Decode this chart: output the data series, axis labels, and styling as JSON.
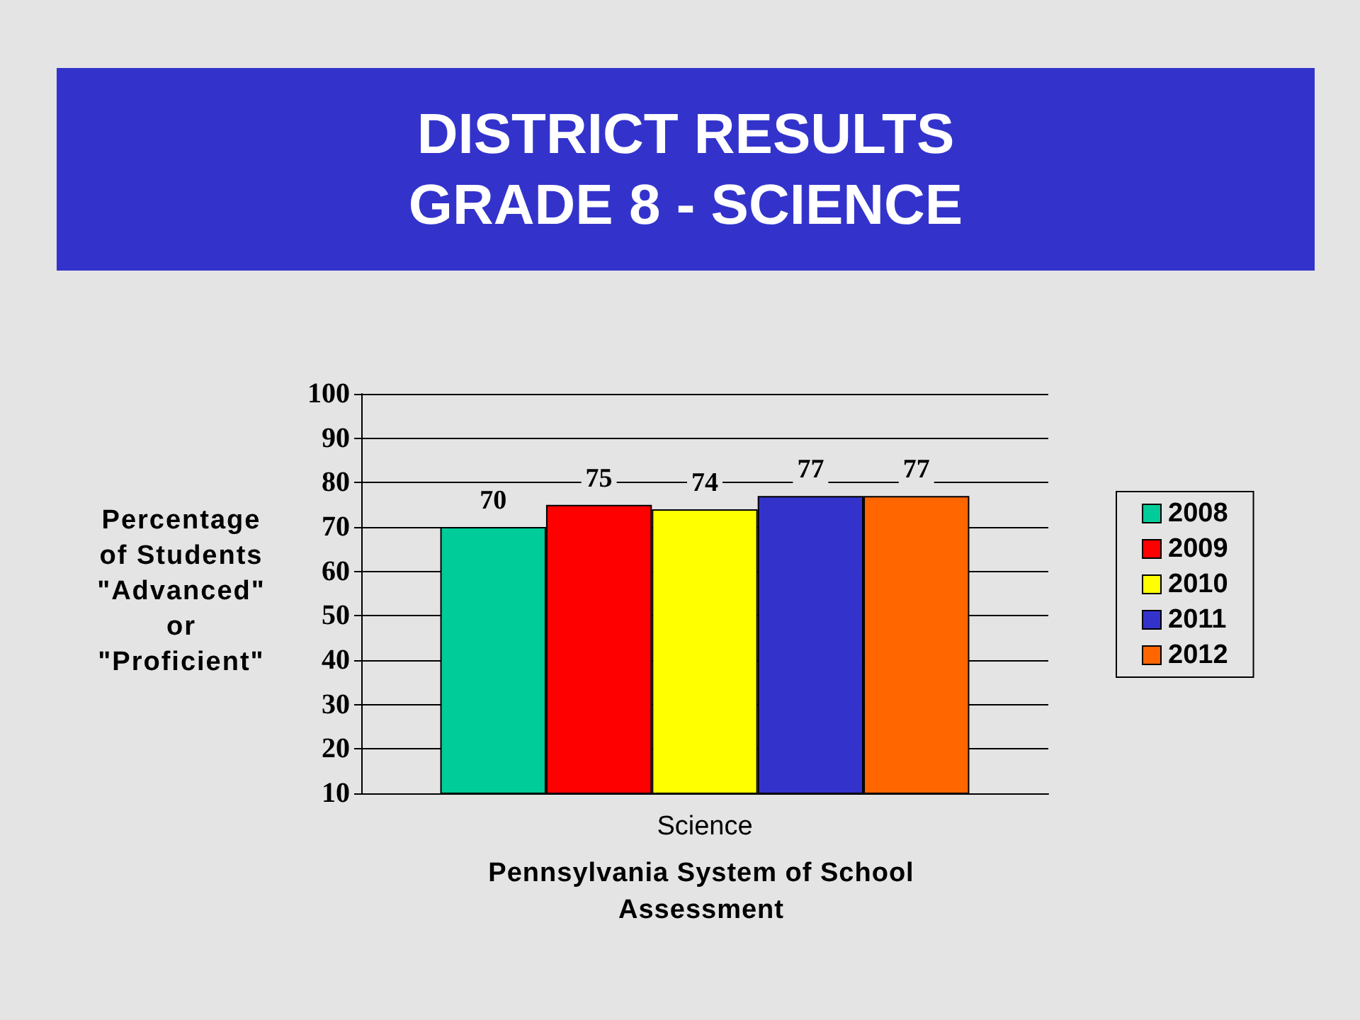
{
  "chart_data": {
    "type": "bar",
    "title": "DISTRICT RESULTS\nGRADE 8 - SCIENCE",
    "xlabel": "Pennsylvania System of School Assessment",
    "ylabel": "Percentage of Students \"Advanced\" or \"Proficient\"",
    "categories": [
      "Science"
    ],
    "series": [
      {
        "name": "2008",
        "color": "#00cc99",
        "values": [
          70
        ]
      },
      {
        "name": "2009",
        "color": "#ff0000",
        "values": [
          75
        ]
      },
      {
        "name": "2010",
        "color": "#ffff00",
        "values": [
          74
        ]
      },
      {
        "name": "2011",
        "color": "#3333cc",
        "values": [
          77
        ]
      },
      {
        "name": "2012",
        "color": "#ff6600",
        "values": [
          77
        ]
      }
    ],
    "ylim": [
      10,
      100
    ],
    "yticks": [
      10,
      20,
      30,
      40,
      50,
      60,
      70,
      80,
      90,
      100
    ],
    "grid": "y",
    "legend": "right",
    "data_labels": true
  }
}
